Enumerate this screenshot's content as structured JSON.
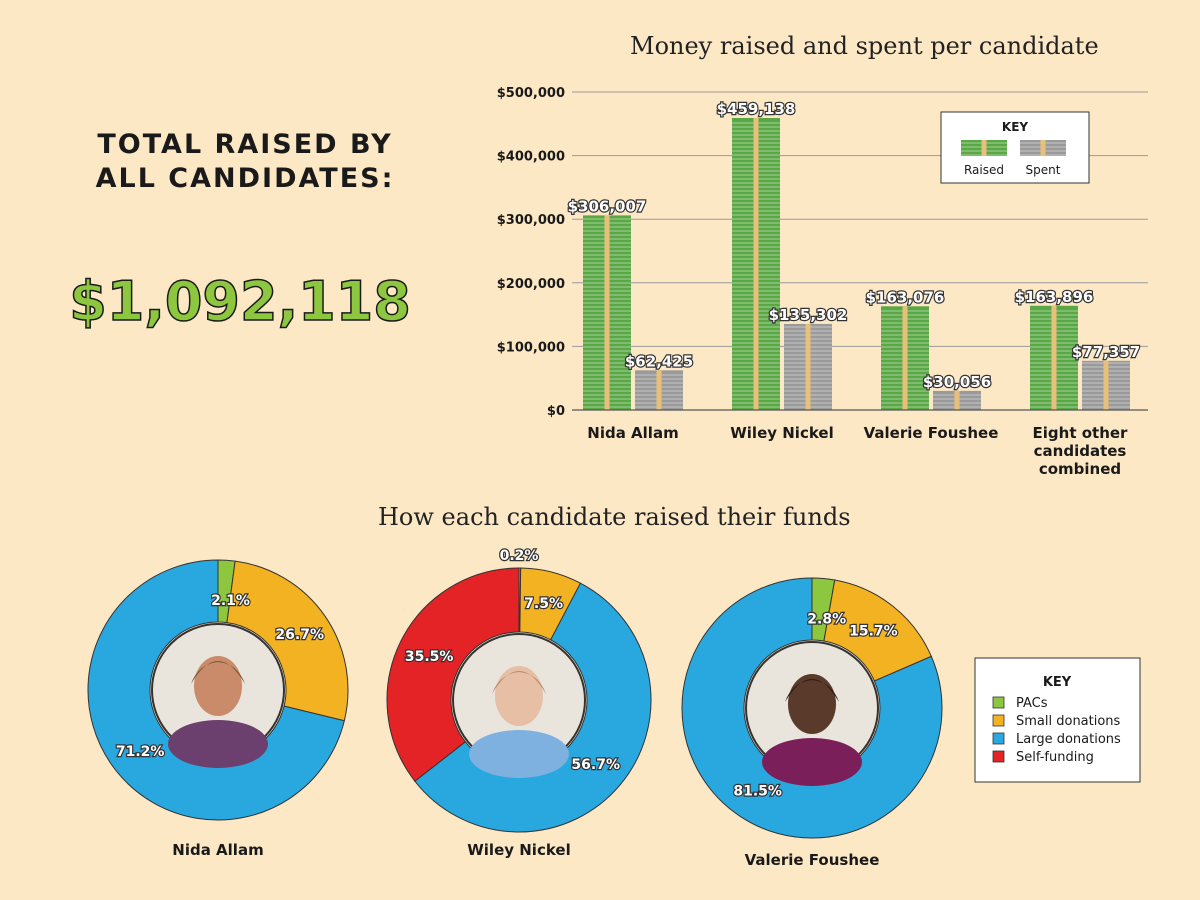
{
  "total": {
    "label": "TOTAL RAISED BY ALL CANDIDATES:",
    "value": "$1,092,118"
  },
  "chart_data": [
    {
      "type": "bar",
      "title": "Money raised and spent per candidate",
      "categories": [
        "Nida Allam",
        "Wiley Nickel",
        "Valerie Foushee",
        "Eight other candidates combined"
      ],
      "category_lines": [
        [
          "Nida Allam"
        ],
        [
          "Wiley Nickel"
        ],
        [
          "Valerie Foushee"
        ],
        [
          "Eight other",
          "candidates",
          "combined"
        ]
      ],
      "series": [
        {
          "name": "Raised",
          "values": [
            306007,
            459138,
            163076,
            163896
          ],
          "labels": [
            "$306,007",
            "$459,138",
            "$163,076",
            "$163,896"
          ],
          "color": "#5aa845"
        },
        {
          "name": "Spent",
          "values": [
            62425,
            135302,
            30056,
            77357
          ],
          "labels": [
            "$62,425",
            "$135,302",
            "$30,056",
            "$77,357"
          ],
          "color": "#9a9a9a"
        }
      ],
      "ylim": [
        0,
        500000
      ],
      "yticks": [
        0,
        100000,
        200000,
        300000,
        400000,
        500000
      ],
      "ytick_labels": [
        "$0",
        "$100,000",
        "$200,000",
        "$300,000",
        "$400,000",
        "$500,000"
      ],
      "legend": {
        "title": "KEY",
        "position": "top-right",
        "items": [
          "Raised",
          "Spent"
        ]
      }
    },
    {
      "type": "pie",
      "title": "How each candidate raised their funds",
      "categories": [
        "PACs",
        "Small donations",
        "Large donations",
        "Self-funding"
      ],
      "colors": [
        "#8dc63f",
        "#f2b221",
        "#29a8e0",
        "#e32326"
      ],
      "legend": {
        "title": "KEY",
        "position": "right"
      },
      "donuts": [
        {
          "name": "Nida Allam",
          "values": [
            2.1,
            26.7,
            71.2,
            0
          ],
          "labels": [
            "2.1%",
            "26.7%",
            "71.2%",
            ""
          ]
        },
        {
          "name": "Wiley Nickel",
          "values": [
            0.2,
            7.5,
            56.7,
            35.5
          ],
          "labels": [
            "0.2%",
            "7.5%",
            "56.7%",
            "35.5%"
          ]
        },
        {
          "name": "Valerie Foushee",
          "values": [
            2.8,
            15.7,
            81.5,
            0
          ],
          "labels": [
            "2.8%",
            "15.7%",
            "81.5%",
            ""
          ]
        }
      ]
    }
  ]
}
